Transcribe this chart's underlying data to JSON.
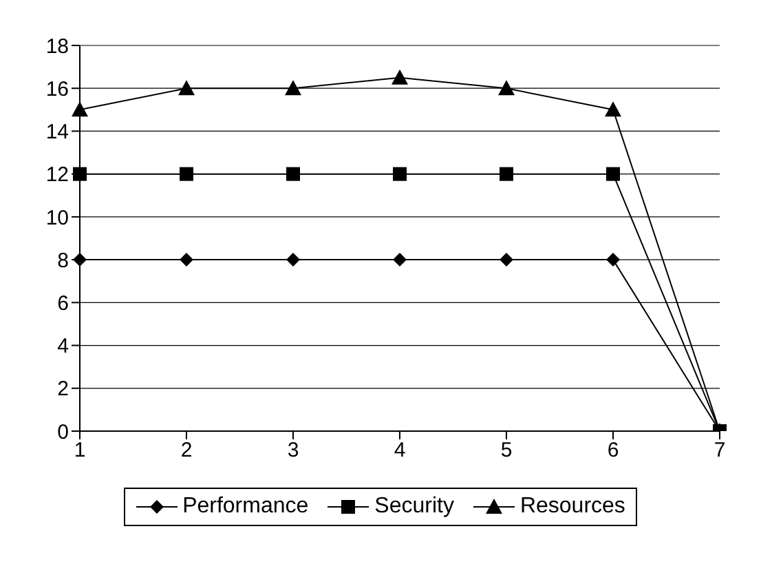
{
  "chart_data": {
    "type": "line",
    "categories": [
      "1",
      "2",
      "3",
      "4",
      "5",
      "6",
      "7"
    ],
    "series": [
      {
        "name": "Performance",
        "color": "#000000",
        "marker": "diamond",
        "values": [
          8,
          8,
          8,
          8,
          8,
          8,
          0
        ]
      },
      {
        "name": "Security",
        "color": "#000000",
        "marker": "square",
        "values": [
          12,
          12,
          12,
          12,
          12,
          12,
          0
        ]
      },
      {
        "name": "Resources",
        "color": "#000000",
        "marker": "triangle",
        "values": [
          15,
          16,
          16,
          16.5,
          16,
          15,
          0
        ]
      }
    ],
    "ylim": [
      0,
      18
    ],
    "yticks": [
      0,
      2,
      4,
      6,
      8,
      10,
      12,
      14,
      16,
      18
    ],
    "grid": "y",
    "legend": "bottom",
    "line_style": "solid"
  }
}
